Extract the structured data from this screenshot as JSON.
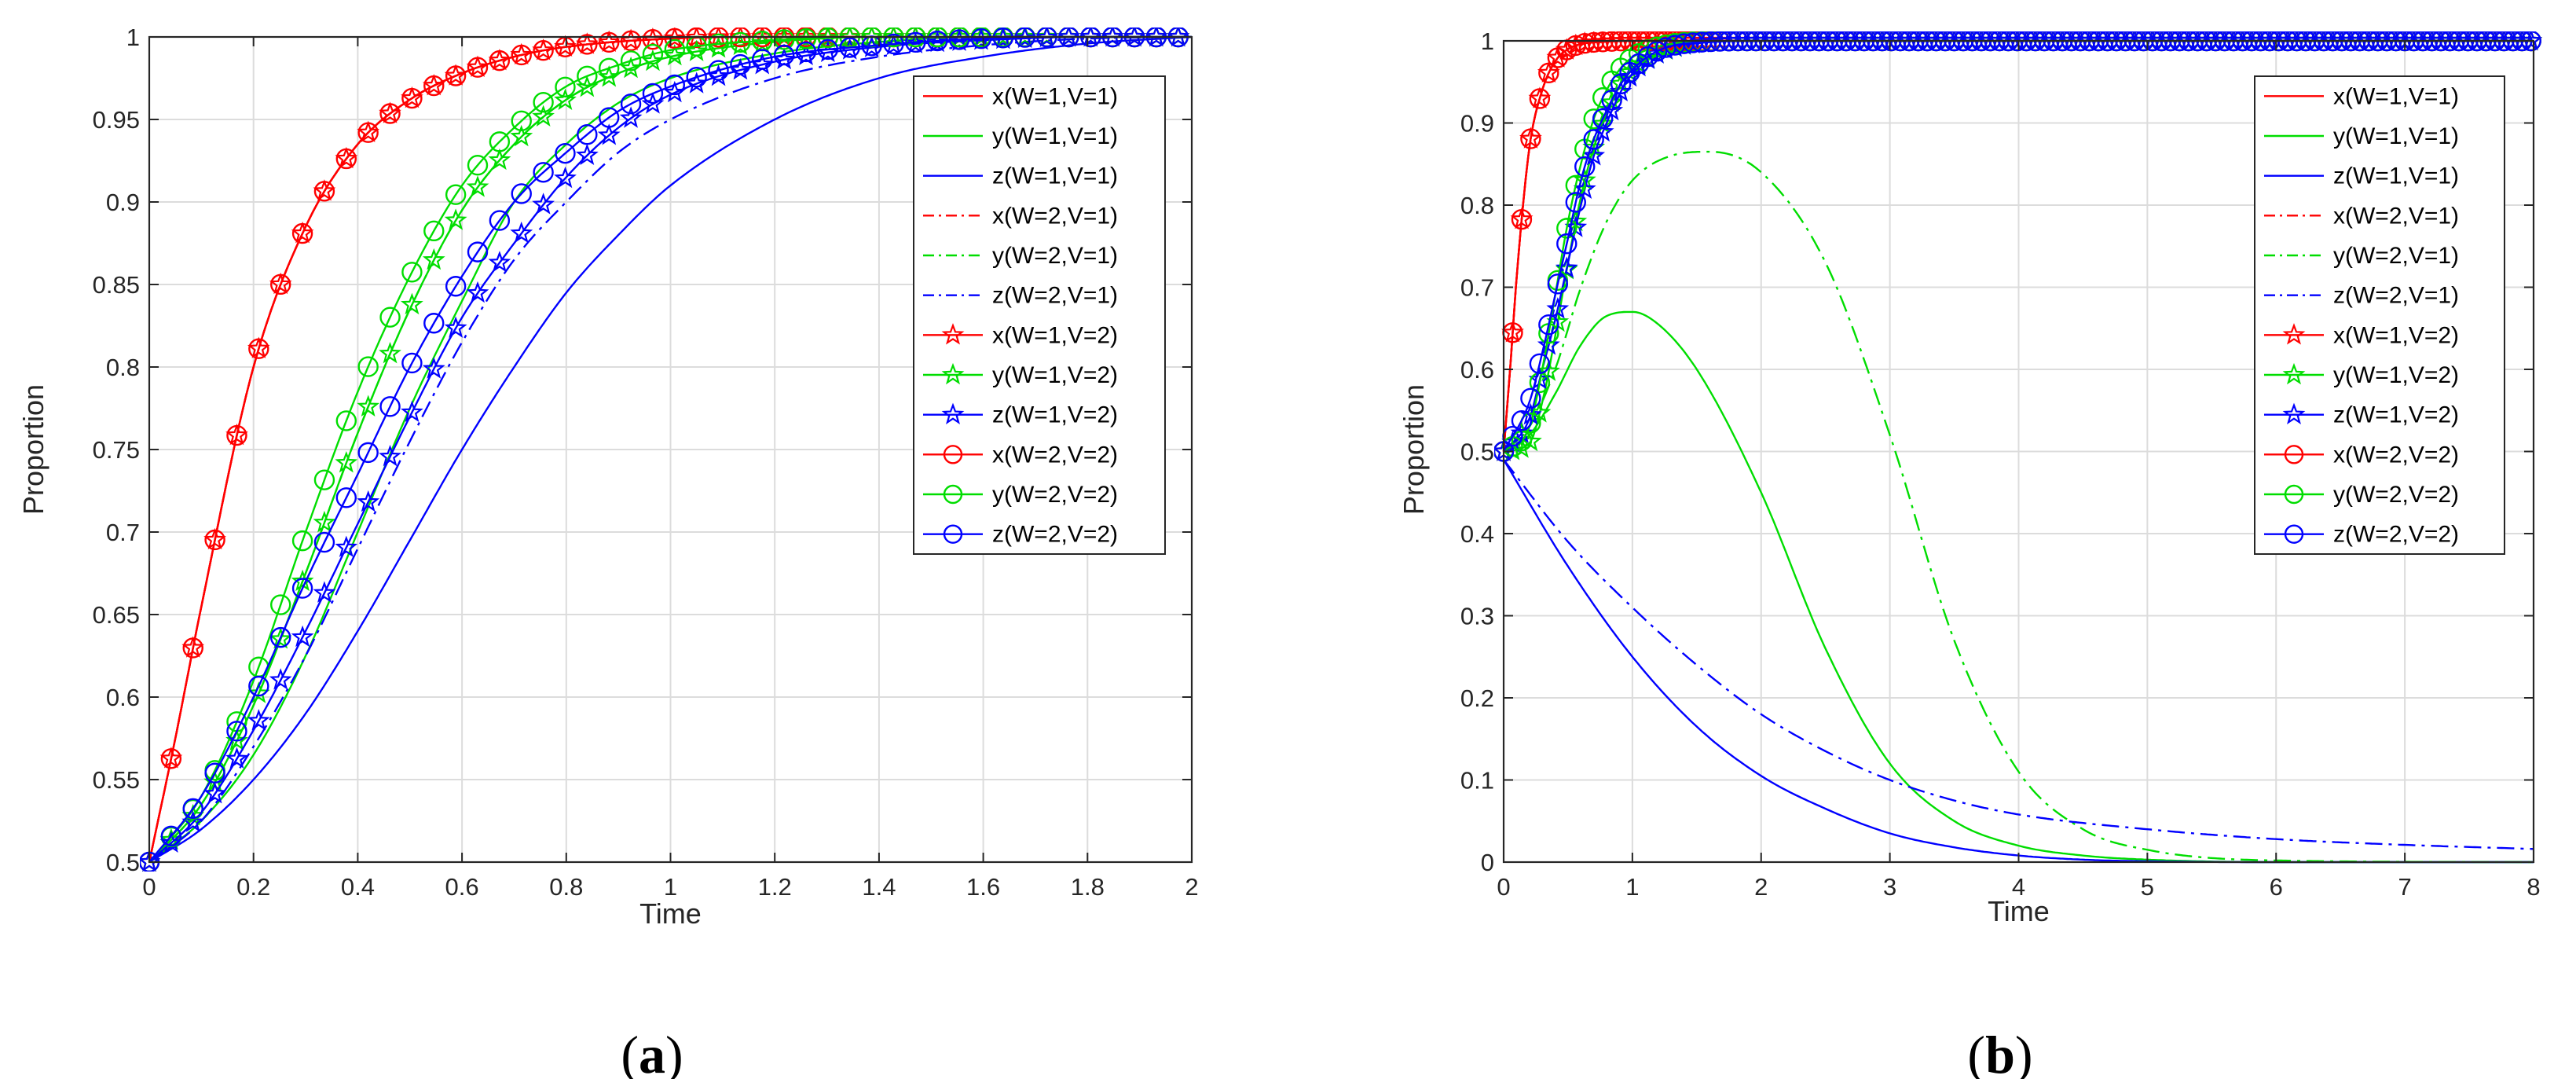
{
  "panels": [
    {
      "caption_open": "(",
      "caption_letter": "a",
      "caption_close": ")"
    },
    {
      "caption_open": "(",
      "caption_letter": "b",
      "caption_close": ")"
    }
  ],
  "chart_data": [
    {
      "type": "line",
      "panel": "a",
      "xlabel": "Time",
      "ylabel": "Proportion",
      "xlim": [
        0,
        2
      ],
      "ylim": [
        0.5,
        1
      ],
      "xticks": [
        0,
        0.2,
        0.4,
        0.6,
        0.8,
        1,
        1.2,
        1.4,
        1.6,
        1.8,
        2
      ],
      "xtick_labels": [
        "0",
        "0.2",
        "0.4",
        "0.6",
        "0.8",
        "1",
        "1.2",
        "1.4",
        "1.6",
        "1.8",
        "2"
      ],
      "yticks": [
        0.5,
        0.55,
        0.6,
        0.65,
        0.7,
        0.75,
        0.8,
        0.85,
        0.9,
        0.95,
        1
      ],
      "ytick_labels": [
        "0.5",
        "0.55",
        "0.6",
        "0.65",
        "0.7",
        "0.75",
        "0.8",
        "0.85",
        "0.9",
        "0.95",
        "1"
      ],
      "grid": true,
      "legend_position": "top-right",
      "series": [
        {
          "name": "x(W=1,V=1)",
          "color": "#ff0000",
          "dash": "solid",
          "marker": "none",
          "x": [
            0,
            0.05,
            0.1,
            0.2,
            0.3,
            0.4,
            0.5,
            0.6,
            0.7,
            0.8,
            1,
            1.2,
            1.4,
            2
          ],
          "y": [
            0.5,
            0.575,
            0.655,
            0.8,
            0.885,
            0.935,
            0.962,
            0.978,
            0.988,
            0.994,
            0.999,
            1,
            1,
            1
          ]
        },
        {
          "name": "y(W=1,V=1)",
          "color": "#00dd00",
          "dash": "solid",
          "marker": "none",
          "x": [
            0,
            0.1,
            0.2,
            0.3,
            0.4,
            0.5,
            0.6,
            0.7,
            0.8,
            0.9,
            1,
            1.2,
            1.4,
            1.6,
            2
          ],
          "y": [
            0.5,
            0.525,
            0.565,
            0.625,
            0.7,
            0.775,
            0.84,
            0.9,
            0.935,
            0.96,
            0.975,
            0.99,
            0.997,
            1,
            1
          ]
        },
        {
          "name": "z(W=1,V=1)",
          "color": "#0000ff",
          "dash": "solid",
          "marker": "none",
          "x": [
            0,
            0.1,
            0.2,
            0.3,
            0.4,
            0.5,
            0.6,
            0.7,
            0.8,
            0.9,
            1,
            1.2,
            1.4,
            1.6,
            1.8,
            2
          ],
          "y": [
            0.5,
            0.52,
            0.55,
            0.59,
            0.64,
            0.695,
            0.75,
            0.8,
            0.845,
            0.88,
            0.91,
            0.95,
            0.975,
            0.988,
            0.996,
            1
          ]
        },
        {
          "name": "x(W=2,V=1)",
          "color": "#ff0000",
          "dash": "dashdot",
          "marker": "none",
          "x": [
            0,
            0.05,
            0.1,
            0.2,
            0.3,
            0.4,
            0.5,
            0.6,
            0.7,
            0.8,
            1,
            1.2,
            1.4,
            2
          ],
          "y": [
            0.5,
            0.575,
            0.655,
            0.8,
            0.885,
            0.935,
            0.962,
            0.978,
            0.988,
            0.994,
            0.999,
            1,
            1,
            1
          ]
        },
        {
          "name": "y(W=2,V=1)",
          "color": "#00dd00",
          "dash": "dashdot",
          "marker": "none",
          "x": [
            0,
            0.1,
            0.2,
            0.3,
            0.4,
            0.5,
            0.6,
            0.7,
            0.8,
            0.9,
            1,
            1.2,
            1.4,
            1.6,
            2
          ],
          "y": [
            0.5,
            0.535,
            0.595,
            0.675,
            0.76,
            0.835,
            0.895,
            0.935,
            0.962,
            0.978,
            0.988,
            0.997,
            1,
            1,
            1
          ]
        },
        {
          "name": "z(W=2,V=1)",
          "color": "#0000ff",
          "dash": "dashdot",
          "marker": "none",
          "x": [
            0,
            0.1,
            0.2,
            0.3,
            0.4,
            0.5,
            0.6,
            0.7,
            0.8,
            0.9,
            1,
            1.2,
            1.4,
            1.6,
            1.8,
            2
          ],
          "y": [
            0.5,
            0.525,
            0.57,
            0.625,
            0.69,
            0.755,
            0.815,
            0.865,
            0.9,
            0.93,
            0.95,
            0.975,
            0.988,
            0.995,
            0.999,
            1
          ]
        },
        {
          "name": "x(W=1,V=2)",
          "color": "#ff0000",
          "dash": "solid",
          "marker": "star",
          "x": [
            0,
            0.05,
            0.1,
            0.2,
            0.3,
            0.4,
            0.5,
            0.6,
            0.7,
            0.8,
            1,
            1.2,
            1.4,
            2
          ],
          "y": [
            0.5,
            0.575,
            0.655,
            0.8,
            0.885,
            0.935,
            0.962,
            0.978,
            0.988,
            0.994,
            0.999,
            1,
            1,
            1
          ]
        },
        {
          "name": "y(W=1,V=2)",
          "color": "#00dd00",
          "dash": "solid",
          "marker": "star",
          "x": [
            0,
            0.1,
            0.2,
            0.3,
            0.4,
            0.5,
            0.6,
            0.7,
            0.8,
            0.9,
            1,
            1.2,
            1.4,
            1.6,
            2
          ],
          "y": [
            0.5,
            0.535,
            0.595,
            0.675,
            0.76,
            0.835,
            0.895,
            0.935,
            0.962,
            0.978,
            0.988,
            0.997,
            1,
            1,
            1
          ]
        },
        {
          "name": "z(W=1,V=2)",
          "color": "#0000ff",
          "dash": "solid",
          "marker": "star",
          "x": [
            0,
            0.1,
            0.2,
            0.3,
            0.4,
            0.5,
            0.6,
            0.7,
            0.8,
            0.9,
            1,
            1.2,
            1.4,
            1.6,
            1.8,
            2
          ],
          "y": [
            0.5,
            0.53,
            0.58,
            0.64,
            0.705,
            0.77,
            0.83,
            0.875,
            0.915,
            0.945,
            0.965,
            0.985,
            0.994,
            0.998,
            1,
            1
          ]
        },
        {
          "name": "x(W=2,V=2)",
          "color": "#ff0000",
          "dash": "solid",
          "marker": "circle",
          "x": [
            0,
            0.05,
            0.1,
            0.2,
            0.3,
            0.4,
            0.5,
            0.6,
            0.7,
            0.8,
            1,
            1.2,
            1.4,
            2
          ],
          "y": [
            0.5,
            0.575,
            0.655,
            0.8,
            0.885,
            0.935,
            0.962,
            0.978,
            0.988,
            0.994,
            0.999,
            1,
            1,
            1
          ]
        },
        {
          "name": "y(W=2,V=2)",
          "color": "#00dd00",
          "dash": "solid",
          "marker": "circle",
          "x": [
            0,
            0.1,
            0.2,
            0.3,
            0.4,
            0.5,
            0.6,
            0.7,
            0.8,
            0.9,
            1,
            1.2,
            1.4,
            1.6,
            2
          ],
          "y": [
            0.5,
            0.54,
            0.61,
            0.7,
            0.785,
            0.855,
            0.91,
            0.945,
            0.97,
            0.983,
            0.992,
            0.998,
            1,
            1,
            1
          ]
        },
        {
          "name": "z(W=2,V=2)",
          "color": "#0000ff",
          "dash": "solid",
          "marker": "circle",
          "x": [
            0,
            0.1,
            0.2,
            0.3,
            0.4,
            0.5,
            0.6,
            0.7,
            0.8,
            0.9,
            1,
            1.2,
            1.4,
            1.6,
            1.8,
            2
          ],
          "y": [
            0.5,
            0.54,
            0.6,
            0.67,
            0.735,
            0.8,
            0.855,
            0.9,
            0.93,
            0.955,
            0.97,
            0.988,
            0.995,
            0.999,
            1,
            1
          ]
        }
      ]
    },
    {
      "type": "line",
      "panel": "b",
      "xlabel": "Time",
      "ylabel": "Proportion",
      "xlim": [
        0,
        8
      ],
      "ylim": [
        0,
        1
      ],
      "xticks": [
        0,
        1,
        2,
        3,
        4,
        5,
        6,
        7,
        8
      ],
      "xtick_labels": [
        "0",
        "1",
        "2",
        "3",
        "4",
        "5",
        "6",
        "7",
        "8"
      ],
      "yticks": [
        0,
        0.1,
        0.2,
        0.3,
        0.4,
        0.5,
        0.6,
        0.7,
        0.8,
        0.9,
        1
      ],
      "ytick_labels": [
        "0",
        "0.1",
        "0.2",
        "0.3",
        "0.4",
        "0.5",
        "0.6",
        "0.7",
        "0.8",
        "0.9",
        "1"
      ],
      "grid": true,
      "legend_position": "top-right",
      "series": [
        {
          "name": "x(W=1,V=1)",
          "color": "#ff0000",
          "dash": "solid",
          "marker": "none",
          "x": [
            0,
            0.05,
            0.1,
            0.2,
            0.3,
            0.4,
            0.5,
            0.6,
            0.8,
            1,
            1.5,
            2,
            8
          ],
          "y": [
            0.5,
            0.6,
            0.71,
            0.87,
            0.94,
            0.975,
            0.99,
            0.996,
            0.999,
            1,
            1,
            1,
            1
          ]
        },
        {
          "name": "y(W=1,V=1)",
          "color": "#00dd00",
          "dash": "solid",
          "marker": "none",
          "x": [
            0,
            0.2,
            0.4,
            0.6,
            0.8,
            1,
            1.2,
            1.5,
            2,
            2.5,
            3,
            3.5,
            4,
            4.5,
            5,
            6,
            8
          ],
          "y": [
            0.5,
            0.52,
            0.57,
            0.63,
            0.665,
            0.67,
            0.655,
            0.6,
            0.45,
            0.26,
            0.12,
            0.05,
            0.02,
            0.008,
            0.003,
            0,
            0
          ]
        },
        {
          "name": "z(W=1,V=1)",
          "color": "#0000ff",
          "dash": "solid",
          "marker": "none",
          "x": [
            0,
            0.5,
            1,
            1.5,
            2,
            2.5,
            3,
            3.5,
            4,
            4.5,
            5,
            6,
            7,
            8
          ],
          "y": [
            0.49,
            0.36,
            0.25,
            0.165,
            0.105,
            0.065,
            0.035,
            0.018,
            0.008,
            0.003,
            0.001,
            0,
            0,
            0
          ]
        },
        {
          "name": "x(W=2,V=1)",
          "color": "#ff0000",
          "dash": "dashdot",
          "marker": "none",
          "x": [
            0,
            0.05,
            0.1,
            0.2,
            0.3,
            0.4,
            0.5,
            0.6,
            0.8,
            1,
            1.5,
            2,
            8
          ],
          "y": [
            0.5,
            0.6,
            0.71,
            0.87,
            0.94,
            0.975,
            0.99,
            0.996,
            0.999,
            1,
            1,
            1,
            1
          ]
        },
        {
          "name": "y(W=2,V=1)",
          "color": "#00dd00",
          "dash": "dashdot",
          "marker": "none",
          "x": [
            0,
            0.2,
            0.4,
            0.6,
            0.8,
            1,
            1.3,
            1.6,
            2,
            2.5,
            3,
            3.5,
            4,
            4.5,
            5,
            6,
            8
          ],
          "y": [
            0.5,
            0.53,
            0.6,
            0.7,
            0.78,
            0.83,
            0.86,
            0.865,
            0.84,
            0.73,
            0.52,
            0.27,
            0.11,
            0.04,
            0.015,
            0.002,
            0
          ]
        },
        {
          "name": "z(W=2,V=1)",
          "color": "#0000ff",
          "dash": "dashdot",
          "marker": "none",
          "x": [
            0,
            0.5,
            1,
            1.5,
            2,
            2.5,
            3,
            3.5,
            4,
            5,
            6,
            7,
            8
          ],
          "y": [
            0.49,
            0.39,
            0.31,
            0.24,
            0.18,
            0.135,
            0.1,
            0.075,
            0.058,
            0.04,
            0.028,
            0.021,
            0.016
          ]
        },
        {
          "name": "x(W=1,V=2)",
          "color": "#ff0000",
          "dash": "solid",
          "marker": "star",
          "x": [
            0,
            0.05,
            0.1,
            0.2,
            0.3,
            0.4,
            0.5,
            0.6,
            0.8,
            1,
            1.5,
            2,
            8
          ],
          "y": [
            0.5,
            0.6,
            0.71,
            0.87,
            0.94,
            0.975,
            0.99,
            0.996,
            0.999,
            1,
            1,
            1,
            1
          ]
        },
        {
          "name": "y(W=1,V=2)",
          "color": "#00dd00",
          "dash": "solid",
          "marker": "star",
          "x": [
            0,
            0.2,
            0.3,
            0.4,
            0.5,
            0.6,
            0.7,
            0.8,
            0.9,
            1,
            1.2,
            1.5,
            2,
            8
          ],
          "y": [
            0.5,
            0.51,
            0.56,
            0.64,
            0.73,
            0.81,
            0.87,
            0.91,
            0.945,
            0.965,
            0.985,
            0.997,
            1,
            1
          ]
        },
        {
          "name": "z(W=1,V=2)",
          "color": "#0000ff",
          "dash": "solid",
          "marker": "star",
          "x": [
            0,
            0.2,
            0.3,
            0.4,
            0.5,
            0.6,
            0.7,
            0.8,
            0.9,
            1,
            1.2,
            1.5,
            2,
            8
          ],
          "y": [
            0.5,
            0.54,
            0.6,
            0.66,
            0.73,
            0.8,
            0.86,
            0.9,
            0.935,
            0.96,
            0.985,
            0.997,
            1,
            1
          ]
        },
        {
          "name": "x(W=2,V=2)",
          "color": "#ff0000",
          "dash": "solid",
          "marker": "circle",
          "x": [
            0,
            0.05,
            0.1,
            0.2,
            0.3,
            0.4,
            0.5,
            0.6,
            0.8,
            1,
            1.5,
            2,
            8
          ],
          "y": [
            0.5,
            0.6,
            0.71,
            0.87,
            0.94,
            0.975,
            0.99,
            0.996,
            0.999,
            1,
            1,
            1,
            1
          ]
        },
        {
          "name": "y(W=2,V=2)",
          "color": "#00dd00",
          "dash": "solid",
          "marker": "circle",
          "x": [
            0,
            0.2,
            0.3,
            0.4,
            0.5,
            0.6,
            0.7,
            0.8,
            0.9,
            1,
            1.2,
            1.5,
            2,
            8
          ],
          "y": [
            0.5,
            0.53,
            0.6,
            0.69,
            0.78,
            0.85,
            0.905,
            0.94,
            0.965,
            0.98,
            0.993,
            0.999,
            1,
            1
          ]
        },
        {
          "name": "z(W=2,V=2)",
          "color": "#0000ff",
          "dash": "solid",
          "marker": "circle",
          "x": [
            0,
            0.2,
            0.3,
            0.4,
            0.5,
            0.6,
            0.7,
            0.8,
            0.9,
            1,
            1.2,
            1.5,
            2,
            8
          ],
          "y": [
            0.5,
            0.56,
            0.62,
            0.69,
            0.76,
            0.83,
            0.88,
            0.915,
            0.945,
            0.965,
            0.988,
            0.998,
            1,
            1
          ]
        }
      ]
    }
  ]
}
